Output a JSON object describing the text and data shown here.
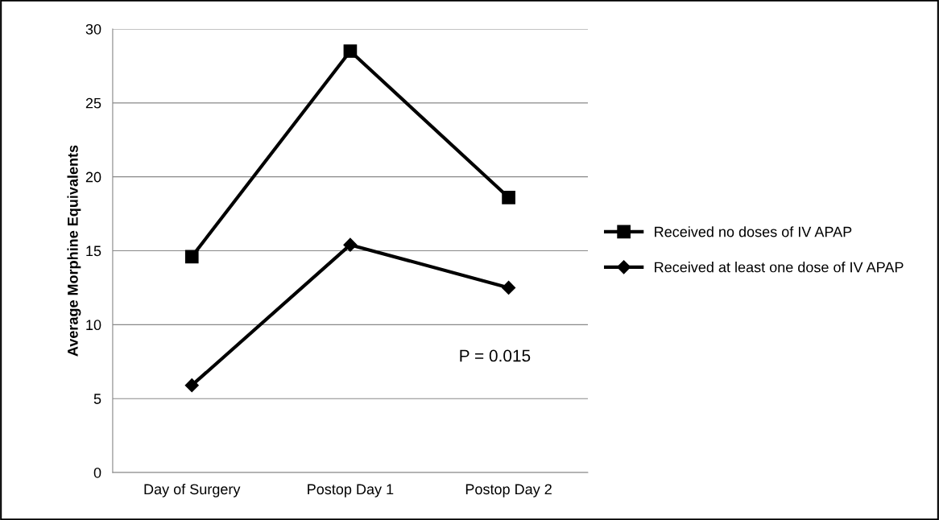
{
  "chart_data": {
    "type": "line",
    "ylabel": "Average Morphine Equivalents",
    "categories": [
      "Day of Surgery",
      "Postop Day 1",
      "Postop Day 2"
    ],
    "series": [
      {
        "name": "Received no doses of IV APAP",
        "color": "#000000",
        "marker": "square",
        "values": [
          14.6,
          28.5,
          18.6
        ]
      },
      {
        "name": "Received at least one dose of IV APAP",
        "color": "#000000",
        "marker": "diamond",
        "values": [
          5.9,
          15.4,
          12.5
        ]
      }
    ],
    "ylim": [
      0,
      30
    ],
    "yticks": [
      0,
      5,
      10,
      15,
      20,
      25,
      30
    ],
    "grid": "y",
    "legend": "right",
    "line_style": "solid",
    "annotations": [
      "P = 0.015"
    ]
  }
}
